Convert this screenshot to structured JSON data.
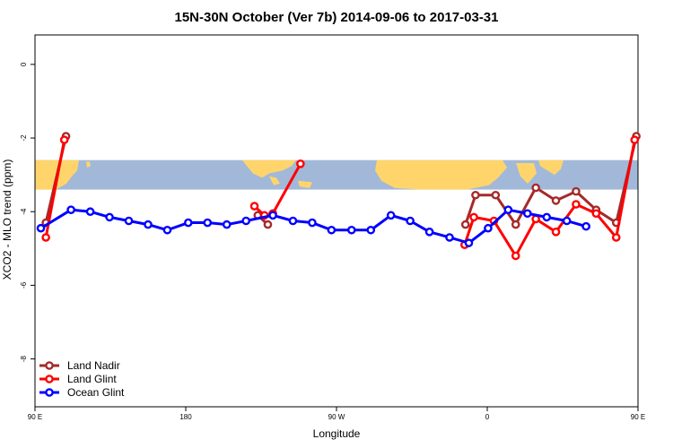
{
  "chart_data": {
    "type": "line",
    "title": "15N-30N October (Ver 7b)   2014-09-06 to 2017-03-31",
    "xlabel": "Longitude",
    "ylabel": "XCO2 - MLO trend (ppm)",
    "xlim": [
      90,
      450
    ],
    "ylim": [
      -9.3,
      0.8
    ],
    "x_ticks": [
      {
        "value": 90,
        "label": "90 E"
      },
      {
        "value": 180,
        "label": "180"
      },
      {
        "value": 270,
        "label": "90 W"
      },
      {
        "value": 360,
        "label": "0"
      },
      {
        "value": 450,
        "label": "90 E"
      }
    ],
    "y_ticks": [
      {
        "value": 0,
        "label": "0"
      },
      {
        "value": -2,
        "label": "-2"
      },
      {
        "value": -4,
        "label": "-4"
      },
      {
        "value": -6,
        "label": "-6"
      },
      {
        "value": -8,
        "label": "-8"
      }
    ],
    "map_band": {
      "y_top": -2.6,
      "y_bottom": -3.4,
      "ocean_color": "#a2b8d8",
      "land_color": "#ffd56b"
    },
    "legend_position": "bottom-left",
    "series": [
      {
        "name": "Land Nadir",
        "color": "#a52a2a",
        "segments": [
          [
            [
              96.5,
              -4.3
            ],
            [
              108.5,
              -1.95
            ]
          ],
          [
            [
              223,
              -4.1
            ],
            [
              229,
              -4.35
            ]
          ],
          [
            [
              347,
              -4.35
            ],
            [
              353,
              -3.55
            ],
            [
              365,
              -3.55
            ],
            [
              377,
              -4.35
            ],
            [
              389,
              -3.35
            ],
            [
              401,
              -3.7
            ],
            [
              413,
              -3.45
            ],
            [
              425,
              -3.95
            ],
            [
              437,
              -4.3
            ],
            [
              449,
              -1.95
            ]
          ]
        ]
      },
      {
        "name": "Land Glint",
        "color": "#ff0000",
        "segments": [
          [
            [
              96.5,
              -4.7
            ],
            [
              107.5,
              -2.05
            ]
          ],
          [
            [
              221,
              -3.85
            ],
            [
              227,
              -4.1
            ],
            [
              232,
              -4.05
            ],
            [
              248.5,
              -2.7
            ]
          ],
          [
            [
              346.5,
              -4.9
            ],
            [
              352,
              -4.15
            ],
            [
              364,
              -4.25
            ],
            [
              377,
              -5.2
            ],
            [
              389,
              -4.2
            ],
            [
              401,
              -4.55
            ],
            [
              413,
              -3.8
            ],
            [
              425,
              -4.05
            ],
            [
              437,
              -4.7
            ],
            [
              448,
              -2.05
            ]
          ]
        ]
      },
      {
        "name": "Ocean Glint",
        "color": "#0000ff",
        "segments": [
          [
            [
              93.5,
              -4.45
            ],
            [
              111.5,
              -3.95
            ],
            [
              123,
              -4.0
            ],
            [
              134.5,
              -4.15
            ],
            [
              146,
              -4.25
            ],
            [
              157.5,
              -4.35
            ],
            [
              169,
              -4.5
            ],
            [
              181.5,
              -4.3
            ],
            [
              193,
              -4.3
            ],
            [
              204.5,
              -4.35
            ],
            [
              216,
              -4.25
            ],
            [
              232,
              -4.1
            ],
            [
              244,
              -4.25
            ],
            [
              255.5,
              -4.3
            ],
            [
              267,
              -4.5
            ],
            [
              279,
              -4.5
            ],
            [
              290.5,
              -4.5
            ],
            [
              302.5,
              -4.1
            ],
            [
              314,
              -4.25
            ],
            [
              325.5,
              -4.55
            ],
            [
              337.5,
              -4.7
            ],
            [
              349,
              -4.85
            ],
            [
              360.5,
              -4.45
            ],
            [
              372.5,
              -3.95
            ],
            [
              384,
              -4.05
            ],
            [
              395.5,
              -4.15
            ],
            [
              407.5,
              -4.25
            ],
            [
              419,
              -4.4
            ]
          ]
        ]
      }
    ]
  }
}
